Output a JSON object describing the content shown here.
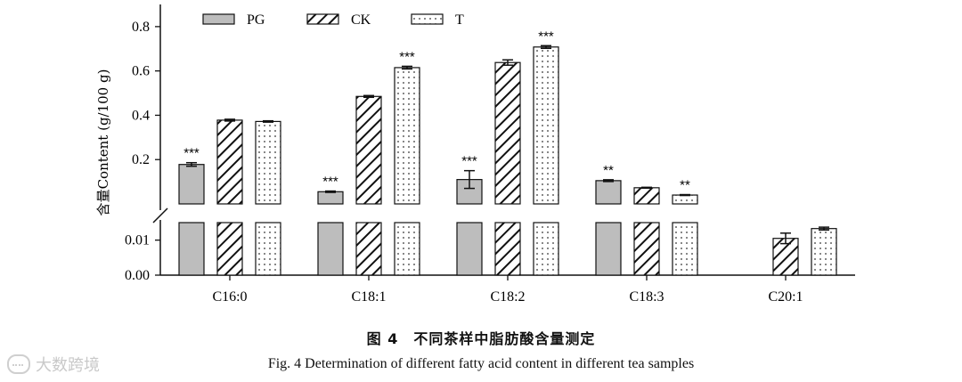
{
  "chart_data": {
    "type": "bar",
    "categories": [
      "C16:0",
      "C18:1",
      "C18:2",
      "C18:3",
      "C20:1"
    ],
    "ylabel": "含量Content (g/100 g)",
    "y_break": true,
    "lower_ylim": [
      0,
      0.015
    ],
    "lower_ticks": [
      "0.00",
      "0.01"
    ],
    "upper_ylim": [
      0.0,
      0.9
    ],
    "upper_ticks": [
      "0.2",
      "0.4",
      "0.6",
      "0.8"
    ],
    "legend_position": "top",
    "series": [
      {
        "name": "PG",
        "pattern": "solid-gray",
        "color": "#bdbdbd",
        "values": [
          0.178,
          0.055,
          0.11,
          0.105,
          null
        ],
        "errors": [
          0.008,
          0.003,
          0.04,
          0.004,
          null
        ],
        "sig": [
          "***",
          "***",
          "***",
          "**",
          ""
        ]
      },
      {
        "name": "CK",
        "pattern": "diagonal-hatch",
        "color": "#222222",
        "values": [
          0.378,
          0.485,
          0.638,
          0.073,
          0.0105
        ],
        "errors": [
          0.004,
          0.004,
          0.012,
          0.002,
          0.0015
        ],
        "sig": [
          "",
          "",
          "",
          "",
          ""
        ]
      },
      {
        "name": "T",
        "pattern": "dots",
        "color": "#444444",
        "values": [
          0.372,
          0.615,
          0.708,
          0.04,
          0.0133
        ],
        "errors": [
          0.003,
          0.006,
          0.006,
          0.002,
          0.0004
        ],
        "sig": [
          "",
          "***",
          "***",
          "**",
          ""
        ]
      }
    ]
  },
  "caption": {
    "cn": "图 4　不同茶样中脂肪酸含量测定",
    "en": "Fig. 4    Determination of different fatty acid content in different tea samples"
  },
  "watermark": {
    "text": "大数跨境"
  }
}
